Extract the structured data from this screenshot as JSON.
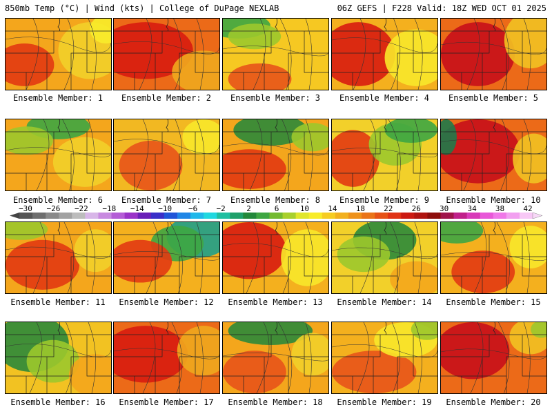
{
  "header": {
    "left": "850mb Temp (°C) | Wind (kts) | College of DuPage NEXLAB",
    "right": "06Z GEFS | F228 Valid: 18Z WED OCT 01 2025"
  },
  "members": [
    {
      "caption": "Ensemble Member: 1",
      "base": "#f4a61c",
      "blobs": [
        [
          "#e23a12",
          0.18,
          0.65,
          0.28,
          0.3
        ],
        [
          "#f2d02a",
          0.8,
          0.45,
          0.3,
          0.4
        ],
        [
          "#f8ec2a",
          0.95,
          0.15,
          0.15,
          0.2
        ]
      ]
    },
    {
      "caption": "Ensemble Member: 2",
      "base": "#ec6a18",
      "blobs": [
        [
          "#d81c10",
          0.3,
          0.45,
          0.45,
          0.4
        ],
        [
          "#f0a81e",
          0.85,
          0.75,
          0.3,
          0.3
        ]
      ]
    },
    {
      "caption": "Ensemble Member: 3",
      "base": "#f6c822",
      "blobs": [
        [
          "#3ea642",
          0.15,
          0.1,
          0.3,
          0.18
        ],
        [
          "#e8541a",
          0.35,
          0.85,
          0.3,
          0.22
        ],
        [
          "#9cc82c",
          0.3,
          0.25,
          0.25,
          0.18
        ]
      ]
    },
    {
      "caption": "Ensemble Member: 4",
      "base": "#f4b01e",
      "blobs": [
        [
          "#d81c10",
          0.25,
          0.5,
          0.35,
          0.45
        ],
        [
          "#f8e82a",
          0.8,
          0.55,
          0.3,
          0.4
        ]
      ]
    },
    {
      "caption": "Ensemble Member: 5",
      "base": "#ec6a18",
      "blobs": [
        [
          "#c8101a",
          0.35,
          0.5,
          0.35,
          0.45
        ],
        [
          "#f2c222",
          0.85,
          0.3,
          0.25,
          0.4
        ]
      ]
    },
    {
      "caption": "Ensemble Member: 6",
      "base": "#f4a61c",
      "blobs": [
        [
          "#3ea642",
          0.5,
          0.1,
          0.3,
          0.18
        ],
        [
          "#9cc82c",
          0.2,
          0.3,
          0.25,
          0.2
        ],
        [
          "#f2d02a",
          0.75,
          0.6,
          0.3,
          0.35
        ]
      ]
    },
    {
      "caption": "Ensemble Member: 7",
      "base": "#f2b822",
      "blobs": [
        [
          "#e8541a",
          0.35,
          0.65,
          0.3,
          0.35
        ],
        [
          "#f8e82a",
          0.85,
          0.25,
          0.2,
          0.25
        ]
      ]
    },
    {
      "caption": "Ensemble Member: 8",
      "base": "#f4a61c",
      "blobs": [
        [
          "#2c8a3a",
          0.45,
          0.15,
          0.35,
          0.22
        ],
        [
          "#e23a12",
          0.25,
          0.7,
          0.35,
          0.28
        ],
        [
          "#9cc82c",
          0.85,
          0.25,
          0.2,
          0.2
        ]
      ]
    },
    {
      "caption": "Ensemble Member: 9",
      "base": "#f2d02a",
      "blobs": [
        [
          "#e23a12",
          0.2,
          0.55,
          0.25,
          0.4
        ],
        [
          "#9cc82c",
          0.6,
          0.35,
          0.25,
          0.3
        ],
        [
          "#3ea642",
          0.75,
          0.15,
          0.25,
          0.18
        ]
      ]
    },
    {
      "caption": "Ensemble Member: 10",
      "base": "#ec6a18",
      "blobs": [
        [
          "#c8101a",
          0.35,
          0.45,
          0.4,
          0.45
        ],
        [
          "#1f7a4a",
          0.05,
          0.25,
          0.1,
          0.25
        ],
        [
          "#f2c222",
          0.88,
          0.55,
          0.2,
          0.35
        ]
      ]
    },
    {
      "caption": "Ensemble Member: 11",
      "base": "#f4a61c",
      "blobs": [
        [
          "#e23a12",
          0.35,
          0.6,
          0.35,
          0.35
        ],
        [
          "#9cc82c",
          0.15,
          0.1,
          0.25,
          0.15
        ],
        [
          "#f2d02a",
          0.85,
          0.4,
          0.2,
          0.3
        ]
      ]
    },
    {
      "caption": "Ensemble Member: 12",
      "base": "#f4b01e",
      "blobs": [
        [
          "#1fa08a",
          0.8,
          0.2,
          0.3,
          0.3
        ],
        [
          "#3ea642",
          0.6,
          0.3,
          0.25,
          0.25
        ],
        [
          "#e23a12",
          0.25,
          0.55,
          0.3,
          0.3
        ]
      ]
    },
    {
      "caption": "Ensemble Member: 13",
      "base": "#f4b01e",
      "blobs": [
        [
          "#d81c10",
          0.25,
          0.4,
          0.35,
          0.4
        ],
        [
          "#f8e82a",
          0.8,
          0.5,
          0.25,
          0.4
        ]
      ]
    },
    {
      "caption": "Ensemble Member: 14",
      "base": "#f2d02a",
      "blobs": [
        [
          "#2c8a3a",
          0.5,
          0.25,
          0.3,
          0.28
        ],
        [
          "#9cc82c",
          0.3,
          0.45,
          0.25,
          0.25
        ],
        [
          "#f4a61c",
          0.8,
          0.8,
          0.25,
          0.25
        ]
      ]
    },
    {
      "caption": "Ensemble Member: 15",
      "base": "#f4b01e",
      "blobs": [
        [
          "#3ea642",
          0.15,
          0.12,
          0.25,
          0.18
        ],
        [
          "#e23a12",
          0.4,
          0.7,
          0.3,
          0.3
        ],
        [
          "#f8e82a",
          0.85,
          0.35,
          0.2,
          0.3
        ]
      ]
    },
    {
      "caption": "Ensemble Member: 16",
      "base": "#f2c222",
      "blobs": [
        [
          "#2c8a3a",
          0.25,
          0.3,
          0.35,
          0.4
        ],
        [
          "#9cc82c",
          0.45,
          0.55,
          0.25,
          0.3
        ],
        [
          "#f4a61c",
          0.85,
          0.75,
          0.25,
          0.3
        ]
      ]
    },
    {
      "caption": "Ensemble Member: 17",
      "base": "#ec6a18",
      "blobs": [
        [
          "#d81c10",
          0.3,
          0.45,
          0.4,
          0.4
        ],
        [
          "#f0a81e",
          0.85,
          0.4,
          0.25,
          0.35
        ]
      ]
    },
    {
      "caption": "Ensemble Member: 18",
      "base": "#f4a61c",
      "blobs": [
        [
          "#2c8a3a",
          0.45,
          0.12,
          0.4,
          0.2
        ],
        [
          "#e8541a",
          0.3,
          0.7,
          0.3,
          0.3
        ],
        [
          "#f2d02a",
          0.85,
          0.45,
          0.2,
          0.3
        ]
      ]
    },
    {
      "caption": "Ensemble Member: 19",
      "base": "#f4b01e",
      "blobs": [
        [
          "#e8541a",
          0.4,
          0.7,
          0.4,
          0.3
        ],
        [
          "#f8e82a",
          0.7,
          0.25,
          0.3,
          0.25
        ],
        [
          "#9cc82c",
          0.9,
          0.1,
          0.15,
          0.15
        ]
      ]
    },
    {
      "caption": "Ensemble Member: 20",
      "base": "#ec6a18",
      "blobs": [
        [
          "#c8101a",
          0.3,
          0.4,
          0.35,
          0.4
        ],
        [
          "#f2c222",
          0.85,
          0.2,
          0.2,
          0.25
        ],
        [
          "#9cc82c",
          0.95,
          0.1,
          0.1,
          0.12
        ]
      ]
    }
  ],
  "colorbar": {
    "labels": [
      "-30",
      "-26",
      "-22",
      "-18",
      "-14",
      "-10",
      "-6",
      "-2",
      "2",
      "6",
      "10",
      "14",
      "18",
      "22",
      "26",
      "30",
      "34",
      "38",
      "42"
    ],
    "colors": [
      "#555555",
      "#6e6e6e",
      "#8a8a8a",
      "#a2a2a2",
      "#bcbcbc",
      "#d8b6e8",
      "#c88ae0",
      "#b45cd6",
      "#9a32c8",
      "#6a1fb8",
      "#3a2ec8",
      "#1f55d8",
      "#1f86e6",
      "#20b8ea",
      "#20d8e0",
      "#1fbfa0",
      "#1fa06a",
      "#23883a",
      "#3ea642",
      "#73ba30",
      "#a8d02c",
      "#e0e62a",
      "#f8ec2a",
      "#f6cc22",
      "#f2b01e",
      "#ee921a",
      "#ea7418",
      "#e65216",
      "#e03214",
      "#cc1a12",
      "#b01410",
      "#8e0e0c",
      "#a0144a",
      "#c0208a",
      "#d83ab8",
      "#e858d8",
      "#f078e8",
      "#f2a0f0",
      "#f8c8f6"
    ]
  }
}
